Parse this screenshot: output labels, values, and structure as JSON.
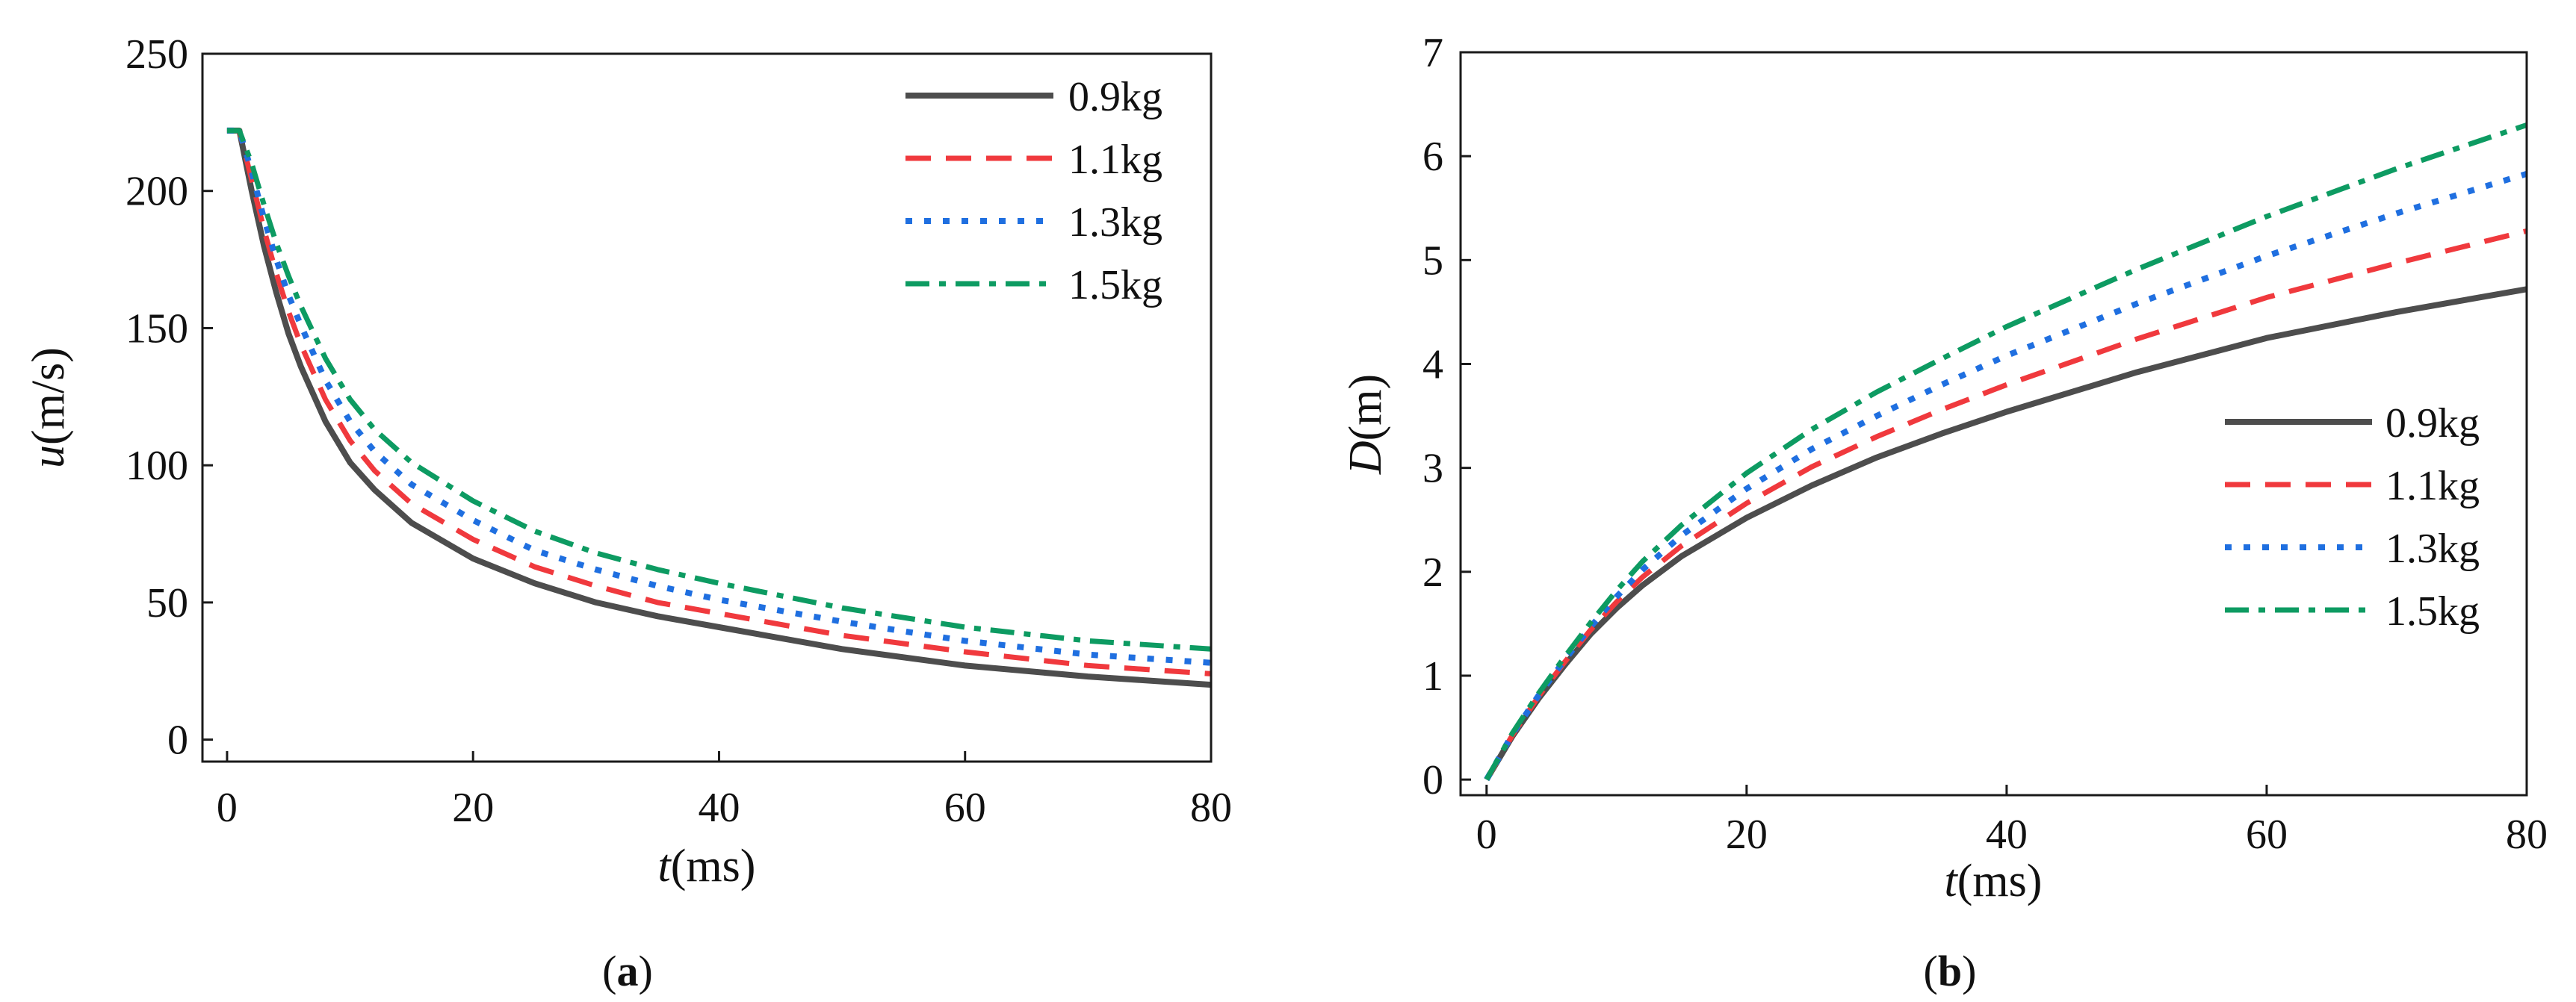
{
  "chart_data": [
    {
      "type": "line",
      "panel": "(a)",
      "caption": {
        "pre": "(",
        "letter": "a",
        "post": ")"
      },
      "xlabel": {
        "var": "t",
        "unit": "(ms)"
      },
      "ylabel": {
        "var": "u",
        "unit": "(m/s)"
      },
      "xlim": [
        -2,
        80
      ],
      "ylim": [
        -8,
        250
      ],
      "xticks": [
        0,
        20,
        40,
        60,
        80
      ],
      "yticks": [
        0,
        50,
        100,
        150,
        200,
        250
      ],
      "legend_position": "top-right",
      "series": [
        {
          "name": "0.9kg",
          "color": "#4d4d4d",
          "dash": "solid",
          "points": [
            [
              0,
              222
            ],
            [
              1,
              222
            ],
            [
              2,
              200
            ],
            [
              3,
              180
            ],
            [
              4,
              163
            ],
            [
              5,
              148
            ],
            [
              6,
              136
            ],
            [
              8,
              116
            ],
            [
              10,
              101
            ],
            [
              12,
              91
            ],
            [
              15,
              79
            ],
            [
              20,
              66
            ],
            [
              25,
              57
            ],
            [
              30,
              50
            ],
            [
              35,
              45
            ],
            [
              40,
              41
            ],
            [
              50,
              33
            ],
            [
              60,
              27
            ],
            [
              70,
              23
            ],
            [
              80,
              20
            ]
          ]
        },
        {
          "name": "1.1kg",
          "color": "#f0393d",
          "dash": "dashed",
          "points": [
            [
              0,
              222
            ],
            [
              1,
              222
            ],
            [
              2,
              204
            ],
            [
              3,
              186
            ],
            [
              4,
              170
            ],
            [
              5,
              156
            ],
            [
              6,
              144
            ],
            [
              8,
              124
            ],
            [
              10,
              109
            ],
            [
              12,
              98
            ],
            [
              15,
              86
            ],
            [
              20,
              73
            ],
            [
              25,
              63
            ],
            [
              30,
              56
            ],
            [
              35,
              50
            ],
            [
              40,
              46
            ],
            [
              50,
              38
            ],
            [
              60,
              32
            ],
            [
              70,
              27
            ],
            [
              80,
              24
            ]
          ]
        },
        {
          "name": "1.3kg",
          "color": "#1f6fe0",
          "dash": "dotted",
          "points": [
            [
              0,
              222
            ],
            [
              1,
              222
            ],
            [
              2,
              207
            ],
            [
              3,
              190
            ],
            [
              4,
              175
            ],
            [
              5,
              162
            ],
            [
              6,
              151
            ],
            [
              8,
              131
            ],
            [
              10,
              116
            ],
            [
              12,
              105
            ],
            [
              15,
              93
            ],
            [
              20,
              80
            ],
            [
              25,
              69
            ],
            [
              30,
              62
            ],
            [
              35,
              56
            ],
            [
              40,
              51
            ],
            [
              50,
              43
            ],
            [
              60,
              36
            ],
            [
              70,
              31
            ],
            [
              80,
              28
            ]
          ]
        },
        {
          "name": "1.5kg",
          "color": "#0d9b62",
          "dash": "dashdot",
          "points": [
            [
              0,
              222
            ],
            [
              1,
              222
            ],
            [
              2,
              210
            ],
            [
              3,
              195
            ],
            [
              4,
              181
            ],
            [
              5,
              169
            ],
            [
              6,
              158
            ],
            [
              8,
              139
            ],
            [
              10,
              124
            ],
            [
              12,
              113
            ],
            [
              15,
              101
            ],
            [
              20,
              87
            ],
            [
              25,
              76
            ],
            [
              30,
              68
            ],
            [
              35,
              62
            ],
            [
              40,
              57
            ],
            [
              50,
              48
            ],
            [
              60,
              41
            ],
            [
              70,
              36
            ],
            [
              80,
              33
            ]
          ]
        }
      ]
    },
    {
      "type": "line",
      "panel": "(b)",
      "caption": {
        "pre": "(",
        "letter": "b",
        "post": ")"
      },
      "xlabel": {
        "var": "t",
        "unit": "(ms)"
      },
      "ylabel": {
        "var": "D",
        "unit": "(m)"
      },
      "xlim": [
        -2,
        80
      ],
      "ylim": [
        -0.15,
        7
      ],
      "xticks": [
        0,
        20,
        40,
        60,
        80
      ],
      "yticks": [
        0,
        1,
        2,
        3,
        4,
        5,
        6,
        7
      ],
      "legend_position": "lower-right",
      "series": [
        {
          "name": "0.9kg",
          "color": "#4d4d4d",
          "dash": "solid",
          "points": [
            [
              0,
              0
            ],
            [
              2,
              0.42
            ],
            [
              4,
              0.78
            ],
            [
              6,
              1.1
            ],
            [
              8,
              1.4
            ],
            [
              10,
              1.65
            ],
            [
              12,
              1.87
            ],
            [
              15,
              2.15
            ],
            [
              20,
              2.52
            ],
            [
              25,
              2.83
            ],
            [
              30,
              3.1
            ],
            [
              35,
              3.33
            ],
            [
              40,
              3.54
            ],
            [
              50,
              3.92
            ],
            [
              60,
              4.25
            ],
            [
              70,
              4.5
            ],
            [
              80,
              4.72
            ]
          ]
        },
        {
          "name": "1.1kg",
          "color": "#f0393d",
          "dash": "dashed",
          "points": [
            [
              0,
              0
            ],
            [
              2,
              0.43
            ],
            [
              4,
              0.8
            ],
            [
              6,
              1.13
            ],
            [
              8,
              1.44
            ],
            [
              10,
              1.71
            ],
            [
              12,
              1.95
            ],
            [
              15,
              2.25
            ],
            [
              20,
              2.66
            ],
            [
              25,
              3.01
            ],
            [
              30,
              3.3
            ],
            [
              35,
              3.56
            ],
            [
              40,
              3.8
            ],
            [
              50,
              4.24
            ],
            [
              60,
              4.64
            ],
            [
              70,
              4.97
            ],
            [
              80,
              5.28
            ]
          ]
        },
        {
          "name": "1.3kg",
          "color": "#1f6fe0",
          "dash": "dotted",
          "points": [
            [
              0,
              0
            ],
            [
              2,
              0.44
            ],
            [
              4,
              0.81
            ],
            [
              6,
              1.15
            ],
            [
              8,
              1.47
            ],
            [
              10,
              1.76
            ],
            [
              12,
              2.02
            ],
            [
              15,
              2.35
            ],
            [
              20,
              2.8
            ],
            [
              25,
              3.18
            ],
            [
              30,
              3.5
            ],
            [
              35,
              3.8
            ],
            [
              40,
              4.08
            ],
            [
              50,
              4.58
            ],
            [
              60,
              5.04
            ],
            [
              70,
              5.45
            ],
            [
              80,
              5.83
            ]
          ]
        },
        {
          "name": "1.5kg",
          "color": "#0d9b62",
          "dash": "dashdot",
          "points": [
            [
              0,
              0
            ],
            [
              2,
              0.45
            ],
            [
              4,
              0.83
            ],
            [
              6,
              1.18
            ],
            [
              8,
              1.51
            ],
            [
              10,
              1.82
            ],
            [
              12,
              2.1
            ],
            [
              15,
              2.45
            ],
            [
              20,
              2.95
            ],
            [
              25,
              3.37
            ],
            [
              30,
              3.73
            ],
            [
              35,
              4.05
            ],
            [
              40,
              4.36
            ],
            [
              50,
              4.91
            ],
            [
              60,
              5.42
            ],
            [
              70,
              5.88
            ],
            [
              80,
              6.3
            ]
          ]
        }
      ]
    }
  ]
}
